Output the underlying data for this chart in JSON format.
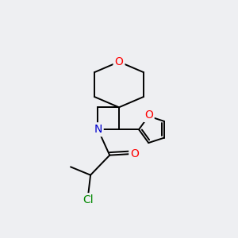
{
  "background_color": "#eeeff2",
  "bond_color": "#000000",
  "atom_colors": {
    "O": "#ff0000",
    "N": "#0000cc",
    "Cl": "#008800",
    "C": "#000000"
  },
  "font_size": 10,
  "figsize": [
    3.0,
    3.0
  ],
  "dpi": 100
}
